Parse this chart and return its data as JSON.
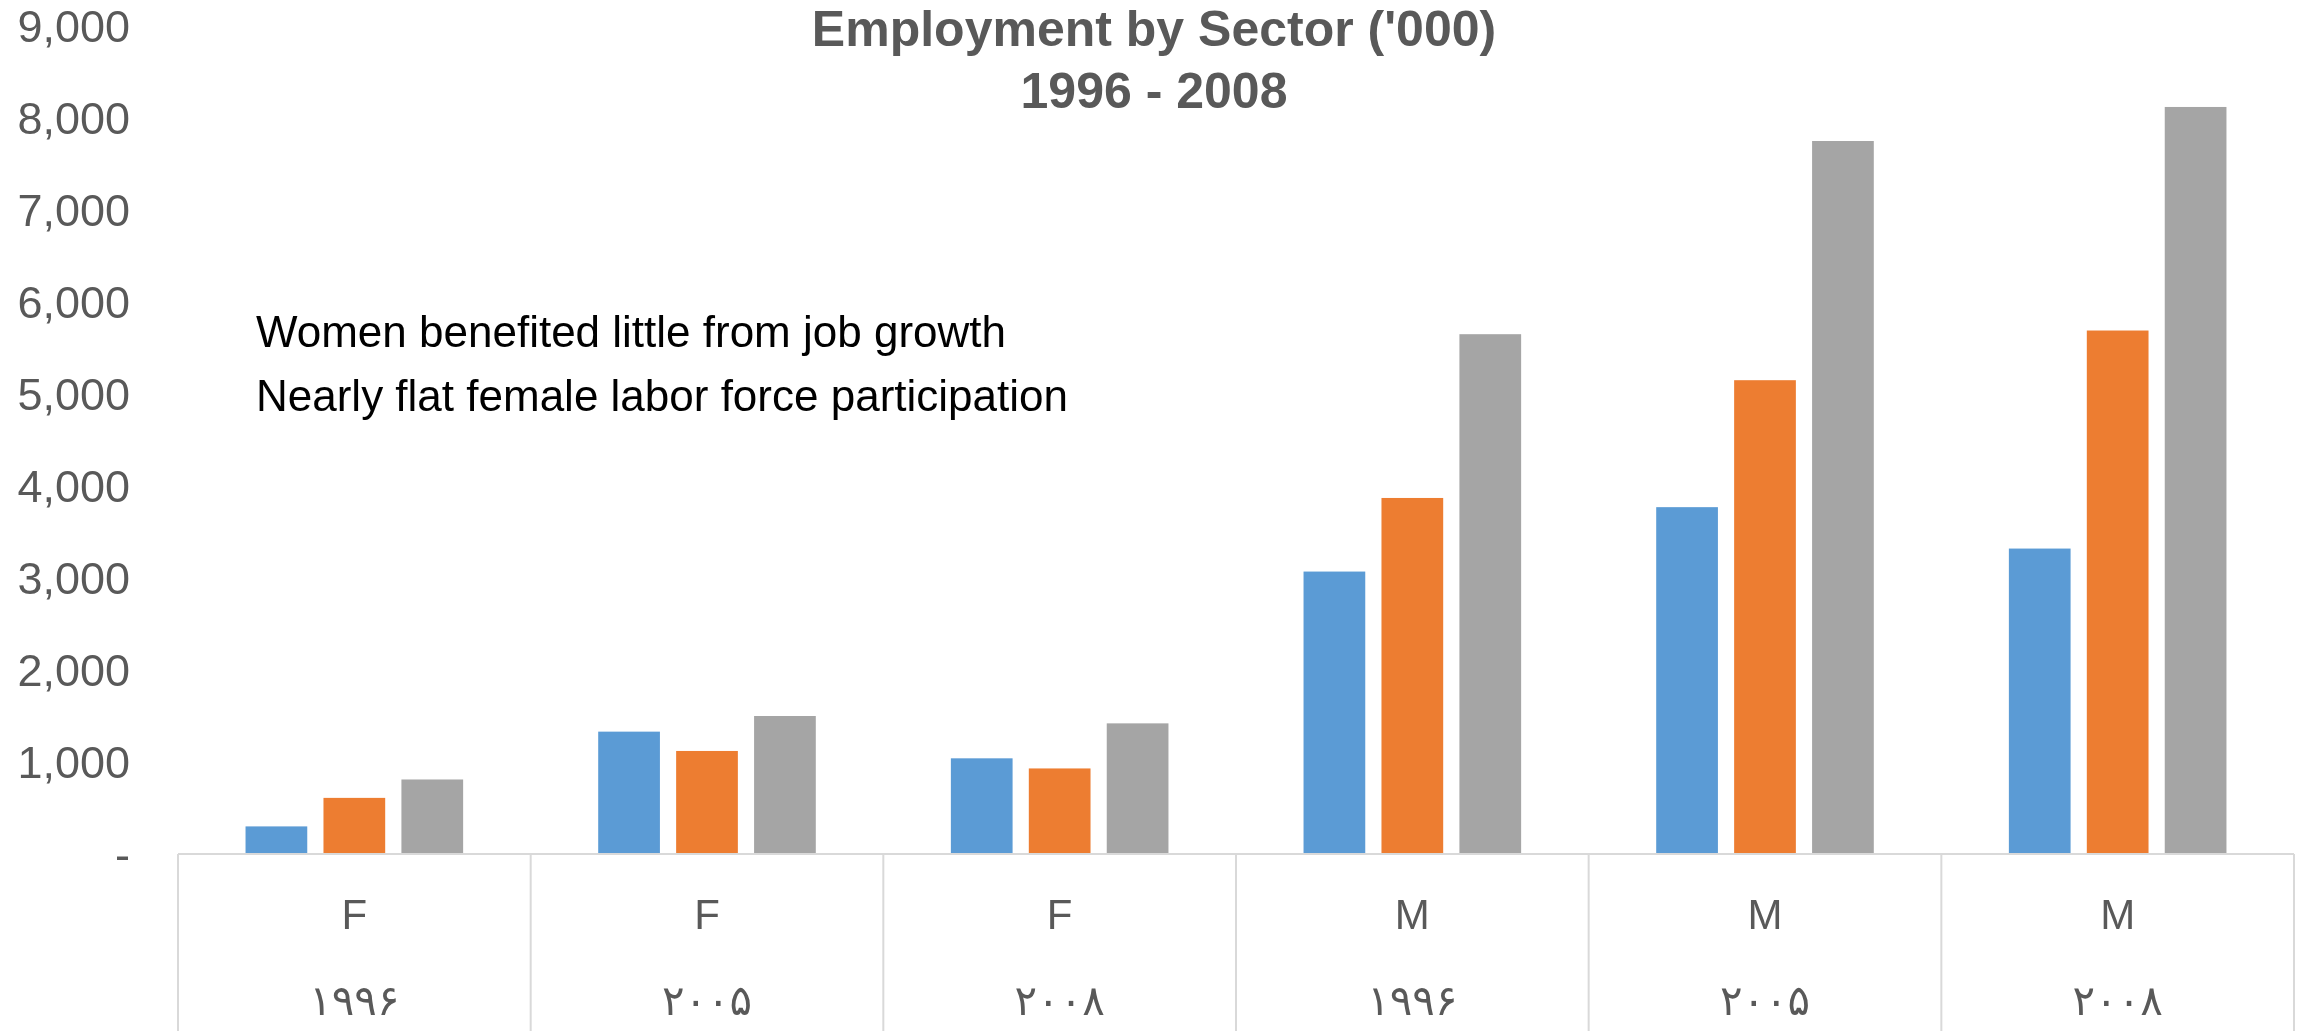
{
  "chart_data": {
    "type": "bar",
    "title": "Employment by Sector ('000)",
    "subtitle": "1996 - 2008",
    "categories": [
      "F\n۱۹۹۶",
      "F\n۲۰۰۵",
      "F\n۲۰۰۸",
      "M\n۱۹۹۶",
      "M\n۲۰۰۵",
      "M\n۲۰۰۸"
    ],
    "series": [
      {
        "color": "#5b9bd5",
        "values": [
          300,
          1330,
          1040,
          3070,
          3770,
          3320
        ]
      },
      {
        "color": "#ed7d31",
        "values": [
          610,
          1120,
          930,
          3870,
          5150,
          5690
        ]
      },
      {
        "color": "#a5a5a5",
        "values": [
          810,
          1500,
          1420,
          5650,
          7750,
          8120
        ]
      }
    ],
    "ylim": [
      0,
      9000
    ],
    "yticks": [
      {
        "value": 0,
        "label": "-"
      },
      {
        "value": 1000,
        "label": "1,000"
      },
      {
        "value": 2000,
        "label": "2,000"
      },
      {
        "value": 3000,
        "label": "3,000"
      },
      {
        "value": 4000,
        "label": "4,000"
      },
      {
        "value": 5000,
        "label": "5,000"
      },
      {
        "value": 6000,
        "label": "6,000"
      },
      {
        "value": 7000,
        "label": "7,000"
      },
      {
        "value": 8000,
        "label": "8,000"
      },
      {
        "value": 9000,
        "label": "9,000"
      }
    ],
    "annotations": [
      "Women benefited little from job growth",
      "Nearly flat female labor force participation"
    ]
  }
}
